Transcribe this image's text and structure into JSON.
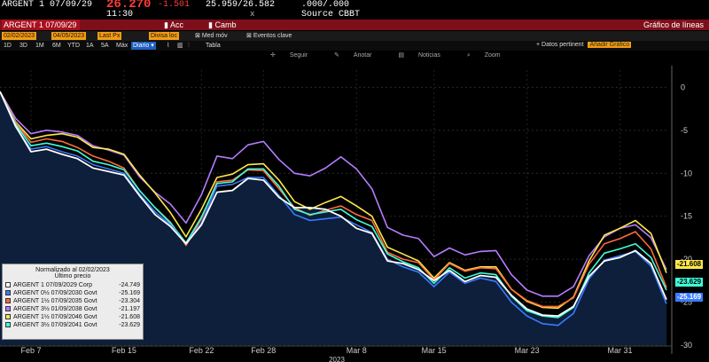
{
  "quote": {
    "ticker": "ARGENT 1 07/09/29",
    "price": "26.270",
    "change": "-1.501",
    "bid_ask": "25.959/26.582",
    "yield": ".000/.000",
    "time": "11:30",
    "axis_x": "x",
    "source": "Source CBBT"
  },
  "redbar": {
    "ticker_field": "ARGENT 1 07/09/29",
    "acc_label": "Acc",
    "camb_label": "Camb",
    "title": "Gráfico de líneas"
  },
  "toolbar1": {
    "start_date": "02/02/2023",
    "end_date": "04/05/2023",
    "last_px": "Last Px",
    "currency": "Divisa loc",
    "med_mov": "Med móv",
    "eventos": "Eventos clave"
  },
  "periods": [
    "1D",
    "3D",
    "1M",
    "6M",
    "YTD",
    "1A",
    "5A",
    "Máx"
  ],
  "frequency": "Diario",
  "table_label": "Tabla",
  "datos_pert": "Datos pertinent",
  "anadir": "Añadir Gráfico",
  "chart_menu": [
    "Seguir",
    "Anotar",
    "Noticias",
    "Zoom"
  ],
  "legend": {
    "title": "Normalizado al 02/02/2023",
    "subtitle": "Último precio"
  },
  "colors": {
    "s1": "#ffffff",
    "s2": "#3a7bff",
    "s3": "#ff6a3d",
    "s4": "#b57cff",
    "s5": "#ffe84a",
    "s6": "#3dffd8",
    "area": "#0d1f3a"
  },
  "chart_data": {
    "type": "line",
    "title": "",
    "xlabel": "2023",
    "ylabel": "",
    "ylim": [
      -30,
      2
    ],
    "y_ticks": [
      "0",
      "-5",
      "-10",
      "-15",
      "-20",
      "-25",
      "-30"
    ],
    "x_ticks": [
      "Feb 7",
      "Feb 15",
      "Feb 22",
      "Feb 28",
      "Mar 8",
      "Mar 15",
      "Mar 23",
      "Mar 31"
    ],
    "x_tick_index": [
      2,
      8,
      13,
      17,
      23,
      28,
      34,
      40
    ],
    "area_under": "ARGENT 1 07/09/2029 Corp",
    "series": [
      {
        "name": "ARGENT 1 07/09/2029 Corp",
        "last": "-24.749",
        "values": [
          -0.5,
          -4.5,
          -7.5,
          -7.2,
          -7.8,
          -8.3,
          -9.4,
          -9.8,
          -10.2,
          -12.6,
          -14.8,
          -16.2,
          -18.2,
          -16.0,
          -12.2,
          -12.0,
          -10.6,
          -10.8,
          -12.8,
          -14.0,
          -14.0,
          -14.2,
          -15.0,
          -16.4,
          -17.0,
          -20.2,
          -20.5,
          -21.2,
          -22.5,
          -21.3,
          -22.6,
          -21.9,
          -22.1,
          -24.2,
          -25.8,
          -26.5,
          -26.6,
          -25.5,
          -22.0,
          -20.2,
          -19.8,
          -19.0,
          -20.5,
          -24.7
        ]
      },
      {
        "name": "ARGENT 0½ 07/09/2030 Govt",
        "last": "-25.169",
        "values": [
          -0.5,
          -4.6,
          -7.2,
          -6.9,
          -7.5,
          -8.0,
          -9.0,
          -9.5,
          -10.0,
          -12.4,
          -14.5,
          -16.0,
          -18.2,
          -15.8,
          -11.5,
          -11.3,
          -10.5,
          -10.5,
          -12.6,
          -14.8,
          -15.5,
          -15.3,
          -15.1,
          -16.0,
          -16.9,
          -20.0,
          -20.9,
          -21.5,
          -23.2,
          -21.5,
          -22.8,
          -22.2,
          -22.6,
          -25.0,
          -26.6,
          -27.5,
          -27.7,
          -26.3,
          -22.3,
          -20.1,
          -19.6,
          -19.1,
          -20.8,
          -25.2
        ]
      },
      {
        "name": "ARGENT 1½ 07/09/2035 Govt",
        "last": "-23.304",
        "values": [
          -0.5,
          -4.1,
          -6.4,
          -6.0,
          -6.3,
          -7.0,
          -8.0,
          -8.6,
          -9.4,
          -12.0,
          -14.0,
          -15.7,
          -18.4,
          -15.3,
          -11.0,
          -10.8,
          -9.6,
          -9.7,
          -11.8,
          -14.0,
          -14.9,
          -14.3,
          -13.8,
          -14.8,
          -15.5,
          -19.2,
          -20.0,
          -20.4,
          -22.4,
          -20.5,
          -21.4,
          -21.0,
          -21.1,
          -23.5,
          -24.8,
          -25.5,
          -25.5,
          -24.5,
          -20.6,
          -18.2,
          -17.6,
          -16.8,
          -18.8,
          -23.3
        ]
      },
      {
        "name": "ARGENT 3½ 01/09/2038 Govt",
        "last": "-21.197",
        "values": [
          -0.5,
          -3.6,
          -5.4,
          -5.0,
          -5.2,
          -5.6,
          -6.8,
          -7.3,
          -7.9,
          -10.4,
          -12.2,
          -13.6,
          -15.8,
          -12.5,
          -8.0,
          -8.3,
          -6.7,
          -6.3,
          -8.4,
          -10.0,
          -10.3,
          -9.4,
          -8.1,
          -9.5,
          -11.8,
          -16.3,
          -17.2,
          -17.6,
          -19.7,
          -18.7,
          -19.5,
          -19.1,
          -19.0,
          -21.8,
          -23.6,
          -24.3,
          -24.3,
          -23.2,
          -19.6,
          -17.4,
          -16.4,
          -16.0,
          -17.5,
          -21.2
        ]
      },
      {
        "name": "ARGENT 1½ 07/09/2046 Govt",
        "last": "-21.608",
        "values": [
          -0.5,
          -4.0,
          -6.0,
          -5.6,
          -5.4,
          -5.8,
          -7.0,
          -7.2,
          -7.8,
          -10.2,
          -12.3,
          -14.6,
          -17.4,
          -14.2,
          -10.5,
          -10.1,
          -9.0,
          -8.9,
          -10.8,
          -13.3,
          -14.2,
          -13.4,
          -12.7,
          -13.8,
          -15.0,
          -18.6,
          -19.4,
          -20.2,
          -22.2,
          -20.4,
          -21.3,
          -20.9,
          -20.9,
          -23.5,
          -24.9,
          -25.6,
          -25.7,
          -24.4,
          -20.2,
          -17.2,
          -16.4,
          -15.5,
          -17.0,
          -21.6
        ]
      },
      {
        "name": "ARGENT 3½ 07/09/2041 Govt",
        "last": "-23.629",
        "values": [
          -0.5,
          -4.3,
          -6.8,
          -6.5,
          -6.9,
          -7.4,
          -8.6,
          -9.0,
          -9.6,
          -12.0,
          -14.0,
          -15.8,
          -18.1,
          -15.1,
          -11.2,
          -11.0,
          -9.5,
          -9.5,
          -11.5,
          -14.2,
          -14.8,
          -14.5,
          -14.2,
          -15.4,
          -16.2,
          -19.4,
          -20.3,
          -21.0,
          -22.8,
          -21.0,
          -22.2,
          -21.6,
          -21.8,
          -24.3,
          -26.0,
          -26.6,
          -26.8,
          -25.6,
          -21.6,
          -19.3,
          -18.8,
          -18.2,
          -19.8,
          -23.6
        ]
      }
    ]
  }
}
